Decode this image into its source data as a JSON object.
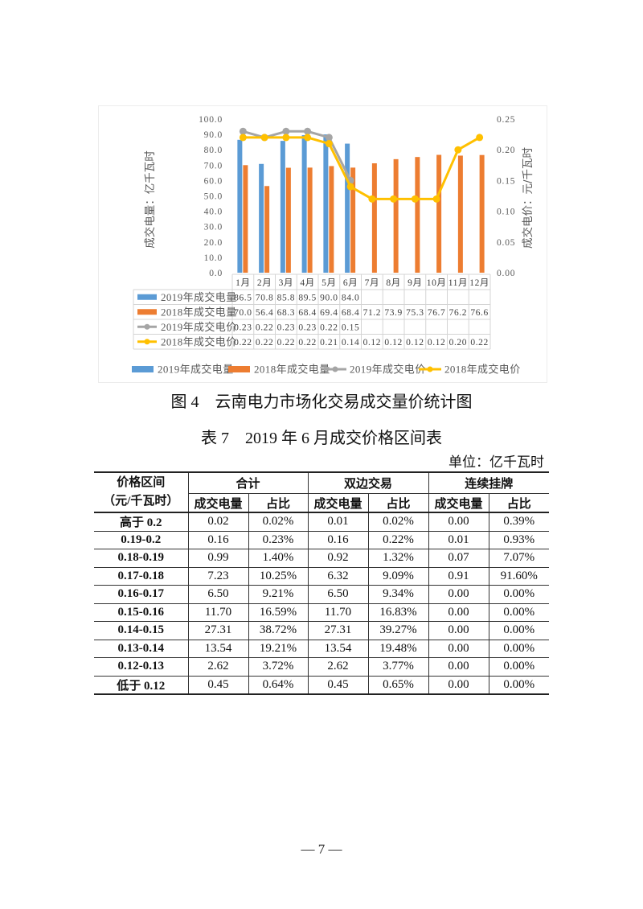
{
  "figure": {
    "caption": "图 4　云南电力市场化交易成交量价统计图"
  },
  "chart_data": {
    "type": "bar",
    "title": "云南电力市场化交易成交量价统计图",
    "categories": [
      "1月",
      "2月",
      "3月",
      "4月",
      "5月",
      "6月",
      "7月",
      "8月",
      "9月",
      "10月",
      "11月",
      "12月"
    ],
    "xlabel": "",
    "ylabel": "成交电量：亿千瓦时",
    "y2label": "成交电价：元/千瓦时",
    "ylim": [
      0,
      100
    ],
    "yticks": [
      "0.0",
      "10.0",
      "20.0",
      "30.0",
      "40.0",
      "50.0",
      "60.0",
      "70.0",
      "80.0",
      "90.0",
      "100.0"
    ],
    "y2lim": [
      0,
      0.25
    ],
    "y2ticks": [
      "0.00",
      "0.05",
      "0.10",
      "0.15",
      "0.20",
      "0.25"
    ],
    "grid": false,
    "legend_position": "bottom",
    "data_table": true,
    "series": [
      {
        "name": "2019年成交电量",
        "type": "bar",
        "axis": "left",
        "color": "#5B9BD5",
        "decimals": 1,
        "values": [
          86.5,
          70.8,
          85.8,
          89.5,
          90.0,
          84.0,
          null,
          null,
          null,
          null,
          null,
          null
        ]
      },
      {
        "name": "2018年成交电量",
        "type": "bar",
        "axis": "left",
        "color": "#ED7D31",
        "decimals": 1,
        "values": [
          70.0,
          56.4,
          68.3,
          68.4,
          69.4,
          68.4,
          71.2,
          73.9,
          75.3,
          76.7,
          76.2,
          76.6
        ]
      },
      {
        "name": "2019年成交电价",
        "type": "line",
        "axis": "right",
        "color": "#A5A5A5",
        "decimals": 2,
        "values": [
          0.23,
          0.22,
          0.23,
          0.23,
          0.22,
          0.15,
          null,
          null,
          null,
          null,
          null,
          null
        ]
      },
      {
        "name": "2018年成交电价",
        "type": "line",
        "axis": "right",
        "color": "#FFC000",
        "decimals": 2,
        "values": [
          0.22,
          0.22,
          0.22,
          0.22,
          0.21,
          0.14,
          0.12,
          0.12,
          0.12,
          0.12,
          0.2,
          0.22
        ]
      }
    ]
  },
  "table": {
    "title": "表 7　2019 年 6 月成交价格区间表",
    "unit": "单位：亿千瓦时",
    "header": {
      "range_label": "价格区间",
      "range_unit": "（元/千瓦时）",
      "groups": [
        "合计",
        "双边交易",
        "连续挂牌"
      ],
      "sub_columns": [
        "成交电量",
        "占比",
        "成交电量",
        "占比",
        "成交电量",
        "占比"
      ]
    },
    "rows": [
      [
        "高于 0.2",
        "0.02",
        "0.02%",
        "0.01",
        "0.02%",
        "0.00",
        "0.39%"
      ],
      [
        "0.19-0.2",
        "0.16",
        "0.23%",
        "0.16",
        "0.22%",
        "0.01",
        "0.93%"
      ],
      [
        "0.18-0.19",
        "0.99",
        "1.40%",
        "0.92",
        "1.32%",
        "0.07",
        "7.07%"
      ],
      [
        "0.17-0.18",
        "7.23",
        "10.25%",
        "6.32",
        "9.09%",
        "0.91",
        "91.60%"
      ],
      [
        "0.16-0.17",
        "6.50",
        "9.21%",
        "6.50",
        "9.34%",
        "0.00",
        "0.00%"
      ],
      [
        "0.15-0.16",
        "11.70",
        "16.59%",
        "11.70",
        "16.83%",
        "0.00",
        "0.00%"
      ],
      [
        "0.14-0.15",
        "27.31",
        "38.72%",
        "27.31",
        "39.27%",
        "0.00",
        "0.00%"
      ],
      [
        "0.13-0.14",
        "13.54",
        "19.21%",
        "13.54",
        "19.48%",
        "0.00",
        "0.00%"
      ],
      [
        "0.12-0.13",
        "2.62",
        "3.72%",
        "2.62",
        "3.77%",
        "0.00",
        "0.00%"
      ],
      [
        "低于 0.12",
        "0.45",
        "0.64%",
        "0.45",
        "0.65%",
        "0.00",
        "0.00%"
      ]
    ]
  },
  "page": {
    "page_number": "— 7 —"
  }
}
